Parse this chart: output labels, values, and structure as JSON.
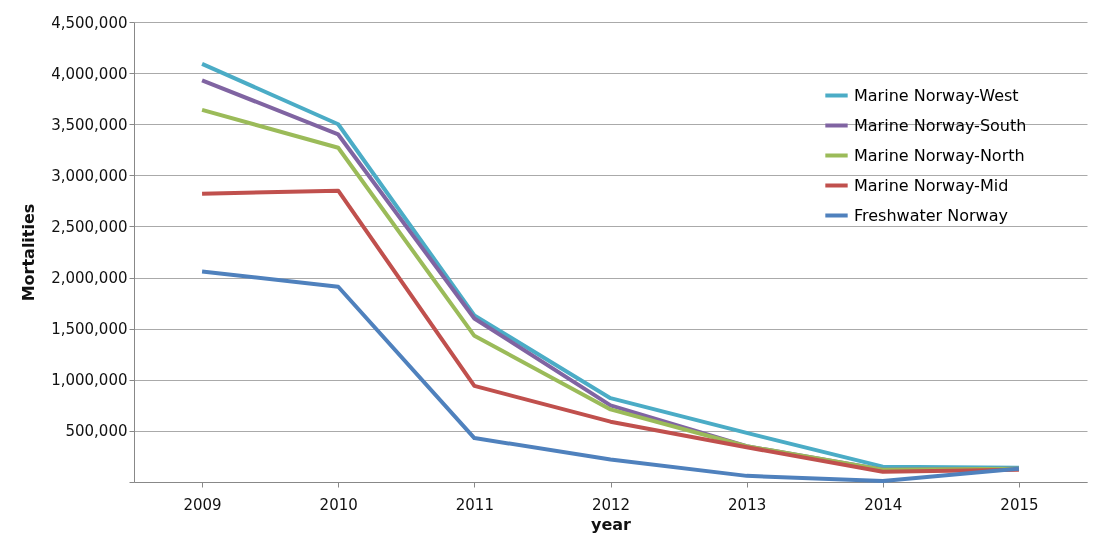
{
  "chart_data": {
    "type": "line",
    "xlabel": "year",
    "ylabel": "Mortalities",
    "categories": [
      "2009",
      "2010",
      "2011",
      "2012",
      "2013",
      "2014",
      "2015"
    ],
    "ylim": [
      0,
      4500000
    ],
    "yticks": [
      {
        "value": 0,
        "label": null
      },
      {
        "value": 500000,
        "label": "500,000"
      },
      {
        "value": 1000000,
        "label": "1,000,000"
      },
      {
        "value": 1500000,
        "label": "1,500,000"
      },
      {
        "value": 2000000,
        "label": "2,000,000"
      },
      {
        "value": 2500000,
        "label": "2,500,000"
      },
      {
        "value": 3000000,
        "label": "3,000,000"
      },
      {
        "value": 3500000,
        "label": "3,500,000"
      },
      {
        "value": 4000000,
        "label": "4,000,000"
      },
      {
        "value": 4500000,
        "label": "4,500,000"
      }
    ],
    "grid": "y",
    "legend": "top right",
    "marker": "none",
    "line_style": "solid",
    "series": [
      {
        "name": "Marine Norway-West",
        "color": "#4bacc6",
        "values": [
          4090000,
          3500000,
          1630000,
          820000,
          480000,
          150000,
          140000
        ]
      },
      {
        "name": "Marine Norway-South",
        "color": "#8064a2",
        "values": [
          3930000,
          3400000,
          1600000,
          750000,
          350000,
          120000,
          130000
        ]
      },
      {
        "name": "Marine Norway-North",
        "color": "#9bbb59",
        "values": [
          3640000,
          3270000,
          1430000,
          710000,
          350000,
          120000,
          130000
        ]
      },
      {
        "name": "Marine Norway-Mid",
        "color": "#c0504d",
        "values": [
          2820000,
          2850000,
          940000,
          590000,
          340000,
          100000,
          120000
        ]
      },
      {
        "name": "Freshwater Norway",
        "color": "#4f81bd",
        "values": [
          2060000,
          1910000,
          430000,
          220000,
          60000,
          10000,
          130000
        ]
      }
    ]
  }
}
